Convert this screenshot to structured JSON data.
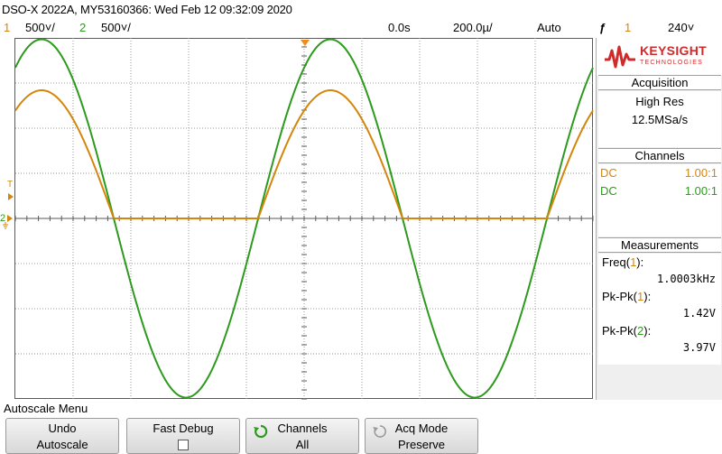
{
  "header": {
    "title": "DSO-X 2022A, MY53160366: Wed Feb 12 09:32:09 2020"
  },
  "status": {
    "ch1_number": "1",
    "ch1_scale": "500˅/",
    "ch2_number": "2",
    "ch2_scale": "500˅/",
    "delay": "0.0s",
    "timebase": "200.0µ/",
    "trigger_mode": "Auto",
    "trigger_symbol": "ƒ",
    "trigger_channel": "1",
    "trigger_level": "240˅"
  },
  "markers": {
    "trigger": "T",
    "ch2": "2"
  },
  "brand": {
    "name": "KEYSIGHT",
    "sub": "TECHNOLOGIES"
  },
  "acquisition": {
    "heading": "Acquisition",
    "mode": "High Res",
    "rate": "12.5MSa/s"
  },
  "channels": {
    "heading": "Channels",
    "rows": [
      {
        "coupling": "DC",
        "probe": "1.00:1"
      },
      {
        "coupling": "DC",
        "probe": "1.00:1"
      }
    ]
  },
  "measurements": {
    "heading": "Measurements",
    "items": [
      {
        "label_prefix": "Freq(",
        "channel": "1",
        "label_suffix": "):",
        "value": "1.0003kHz"
      },
      {
        "label_prefix": "Pk-Pk(",
        "channel": "1",
        "label_suffix": "):",
        "value": "1.42V"
      },
      {
        "label_prefix": "Pk-Pk(",
        "channel": "2",
        "label_suffix": "):",
        "value": "3.97V"
      }
    ]
  },
  "menu": {
    "title": "Autoscale Menu",
    "softkeys": [
      {
        "line1": "Undo",
        "line2": "Autoscale"
      },
      {
        "line1": "Fast Debug",
        "line2": ""
      },
      {
        "line1": "Channels",
        "line2": "All"
      },
      {
        "line1": "Acq Mode",
        "line2": "Preserve"
      }
    ]
  },
  "colors": {
    "ch1": "#d4860a",
    "ch2": "#2c9a1c",
    "grid": "#5a5a5a",
    "accent": "#d12a2a"
  },
  "chart_data": {
    "type": "line",
    "title": "",
    "xlabel": "",
    "ylabel": "",
    "x_unit": "s",
    "y_unit": "V",
    "frequency_hz": 1000,
    "xlim": [
      -0.001,
      0.001
    ],
    "ylim": [
      -2.0,
      2.0
    ],
    "grid": true,
    "series": [
      {
        "name": "1",
        "color": "#d4860a",
        "description_values": {
          "pk_pk_v": 1.42,
          "waveform": "half-wave rectified sine",
          "min_v": 0.0,
          "max_v": 1.42
        }
      },
      {
        "name": "2",
        "color": "#2c9a1c",
        "description_values": {
          "pk_pk_v": 3.97,
          "waveform": "sine",
          "min_v": -1.985,
          "max_v": 1.985
        }
      }
    ]
  }
}
